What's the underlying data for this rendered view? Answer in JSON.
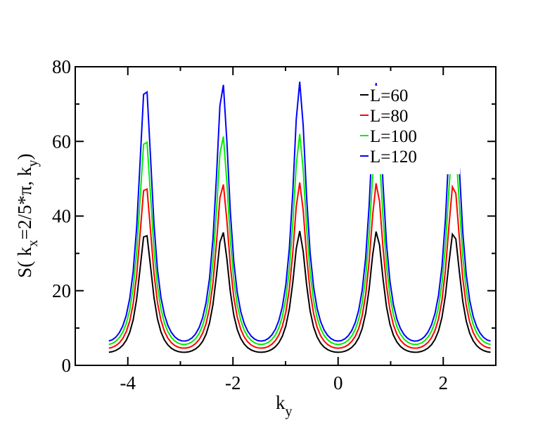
{
  "chart_data": {
    "type": "line",
    "title": "",
    "xlabel": {
      "main": "k",
      "sub": "y"
    },
    "ylabel": {
      "parts": [
        {
          "t": "S( k",
          "sub": false
        },
        {
          "t": "x",
          "sub": true
        },
        {
          "t": "=2/5*π, k",
          "sub": false
        },
        {
          "t": "y",
          "sub": true
        },
        {
          "t": ")",
          "sub": false
        }
      ]
    },
    "xlim": [
      -5.0,
      3.0
    ],
    "ylim": [
      0,
      80
    ],
    "xticks": [
      -4,
      -2,
      0,
      2
    ],
    "xtick_labels": [
      "-4",
      "-2",
      "0",
      "2"
    ],
    "yticks": [
      0,
      20,
      40,
      60,
      80
    ],
    "ytick_labels": [
      "0",
      "20",
      "40",
      "60",
      "80"
    ],
    "grid": false,
    "legend_position": "top-right",
    "peak_positions": [
      -3.6652,
      -2.1991,
      -0.733,
      0.733,
      2.1991
    ],
    "x_range": [
      -4.36,
      2.9
    ],
    "series": [
      {
        "name": "L=60",
        "color": "#000000",
        "peak": 36.0,
        "base": 3.5
      },
      {
        "name": "L=80",
        "color": "#ff0000",
        "peak": 49.0,
        "base": 4.6
      },
      {
        "name": "L=100",
        "color": "#00ee00",
        "peak": 62.0,
        "base": 5.6
      },
      {
        "name": "L=120",
        "color": "#0000ff",
        "peak": 76.0,
        "base": 6.5
      }
    ]
  }
}
